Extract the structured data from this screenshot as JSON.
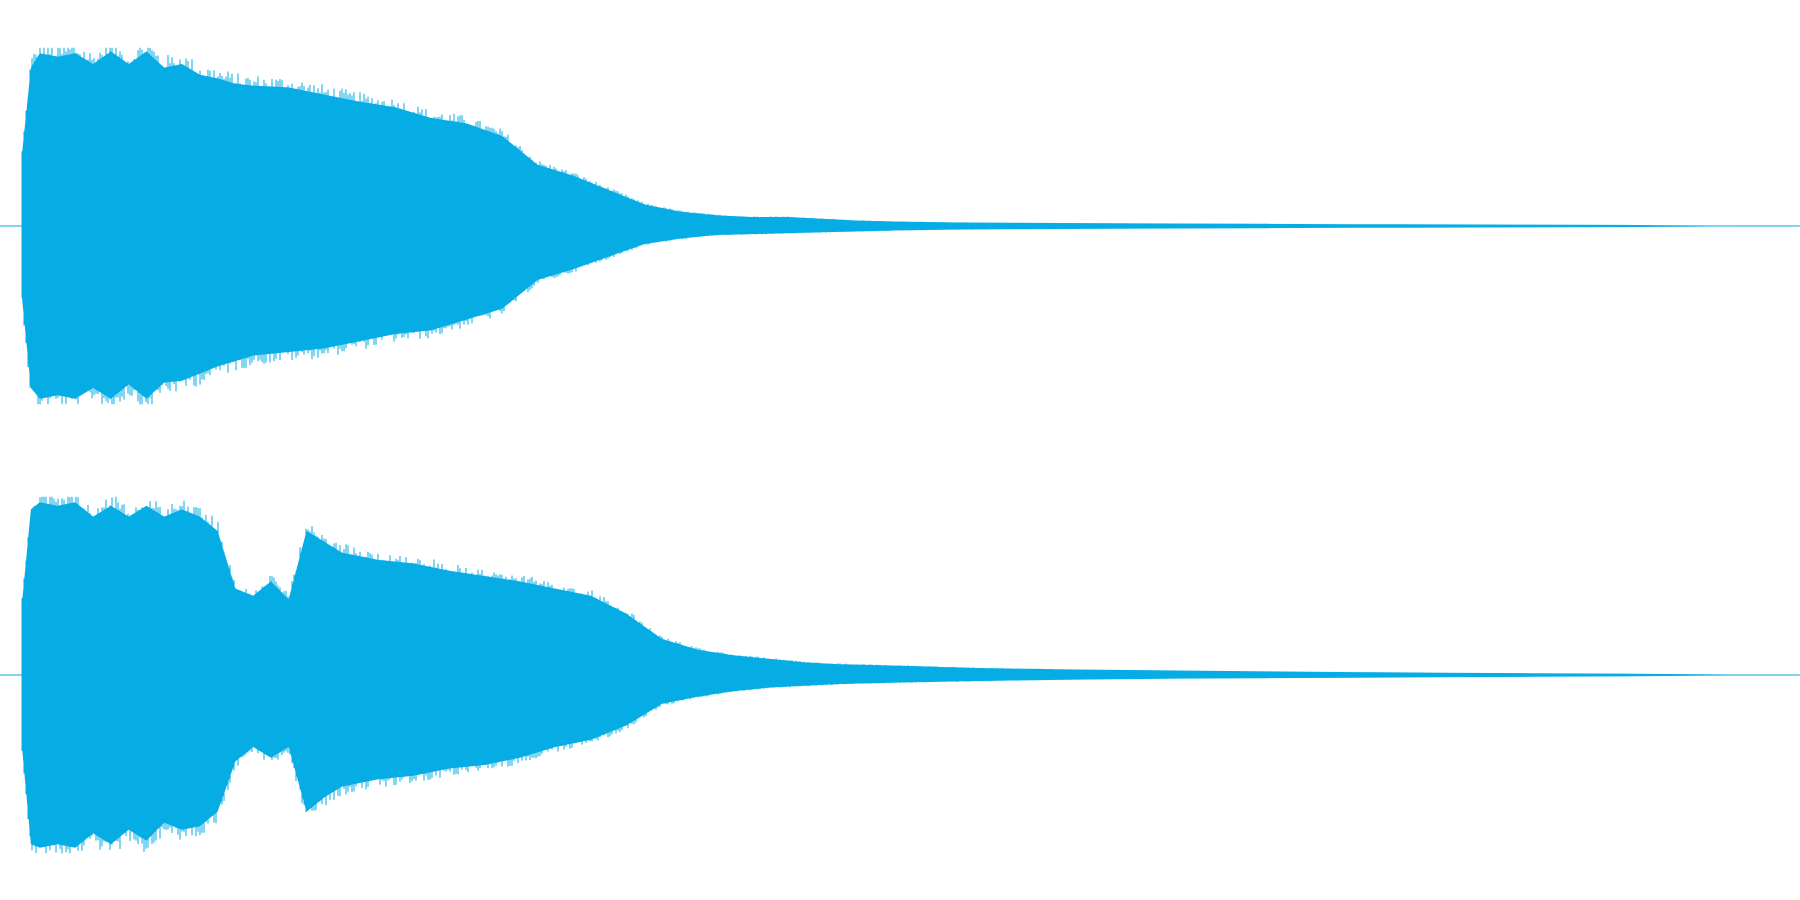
{
  "theme": {
    "background": "#ffffff",
    "waveform_color": "#06ace4"
  },
  "chart_data": {
    "type": "area",
    "description_kind": "stereo audio waveform amplitude envelope",
    "title": "",
    "xlabel": "",
    "ylabel": "",
    "grid": false,
    "legend": "none",
    "ylim": [
      -1,
      1
    ],
    "xlim": [
      0,
      1
    ],
    "series": [
      {
        "x": [
          0,
          0.005,
          0.01,
          0.02,
          0.03,
          0.04,
          0.05,
          0.06,
          0.07,
          0.08,
          0.09,
          0.1,
          0.11,
          0.12,
          0.13,
          0.15,
          0.17,
          0.19,
          0.21,
          0.23,
          0.25,
          0.27,
          0.29,
          0.31,
          0.33,
          0.35,
          0.37,
          0.39,
          0.41,
          0.43,
          0.45,
          0.47,
          0.49,
          0.52,
          0.55,
          0.6,
          0.65,
          0.7,
          0.75,
          0.8,
          0.85,
          0.9,
          1.0
        ],
        "upper": [
          0.4,
          0.88,
          0.96,
          0.94,
          0.96,
          0.9,
          0.97,
          0.9,
          0.97,
          0.88,
          0.9,
          0.84,
          0.82,
          0.79,
          0.78,
          0.77,
          0.73,
          0.69,
          0.66,
          0.6,
          0.57,
          0.5,
          0.34,
          0.28,
          0.2,
          0.12,
          0.08,
          0.06,
          0.05,
          0.05,
          0.04,
          0.03,
          0.025,
          0.02,
          0.018,
          0.016,
          0.014,
          0.012,
          0.01,
          0.009,
          0.008,
          0.006,
          0.0
        ],
        "lower": [
          -0.4,
          -0.9,
          -0.96,
          -0.94,
          -0.96,
          -0.9,
          -0.96,
          -0.88,
          -0.96,
          -0.87,
          -0.86,
          -0.82,
          -0.78,
          -0.75,
          -0.72,
          -0.7,
          -0.68,
          -0.64,
          -0.6,
          -0.58,
          -0.52,
          -0.46,
          -0.3,
          -0.24,
          -0.17,
          -0.1,
          -0.07,
          -0.05,
          -0.045,
          -0.04,
          -0.035,
          -0.03,
          -0.025,
          -0.02,
          -0.018,
          -0.016,
          -0.014,
          -0.012,
          -0.01,
          -0.009,
          -0.008,
          -0.006,
          0.0
        ]
      },
      {
        "x": [
          0,
          0.005,
          0.01,
          0.02,
          0.03,
          0.04,
          0.05,
          0.06,
          0.07,
          0.08,
          0.09,
          0.1,
          0.11,
          0.12,
          0.13,
          0.14,
          0.15,
          0.16,
          0.17,
          0.18,
          0.2,
          0.22,
          0.24,
          0.26,
          0.28,
          0.3,
          0.32,
          0.34,
          0.36,
          0.38,
          0.4,
          0.42,
          0.44,
          0.46,
          0.48,
          0.5,
          0.53,
          0.56,
          0.6,
          0.65,
          0.7,
          0.75,
          0.8,
          0.85,
          0.9,
          1.0
        ],
        "upper": [
          0.4,
          0.92,
          0.96,
          0.94,
          0.96,
          0.88,
          0.94,
          0.88,
          0.94,
          0.88,
          0.92,
          0.88,
          0.8,
          0.48,
          0.44,
          0.52,
          0.42,
          0.8,
          0.74,
          0.68,
          0.64,
          0.62,
          0.58,
          0.55,
          0.52,
          0.48,
          0.44,
          0.34,
          0.2,
          0.14,
          0.11,
          0.09,
          0.07,
          0.06,
          0.055,
          0.05,
          0.04,
          0.035,
          0.03,
          0.025,
          0.02,
          0.016,
          0.012,
          0.01,
          0.008,
          0.0
        ],
        "lower": [
          -0.4,
          -0.94,
          -0.96,
          -0.94,
          -0.96,
          -0.88,
          -0.94,
          -0.86,
          -0.92,
          -0.82,
          -0.86,
          -0.84,
          -0.76,
          -0.48,
          -0.4,
          -0.46,
          -0.4,
          -0.76,
          -0.68,
          -0.62,
          -0.58,
          -0.56,
          -0.52,
          -0.5,
          -0.46,
          -0.4,
          -0.36,
          -0.28,
          -0.16,
          -0.12,
          -0.09,
          -0.07,
          -0.06,
          -0.05,
          -0.045,
          -0.04,
          -0.035,
          -0.03,
          -0.025,
          -0.02,
          -0.018,
          -0.015,
          -0.012,
          -0.01,
          -0.008,
          0.0
        ]
      }
    ]
  }
}
